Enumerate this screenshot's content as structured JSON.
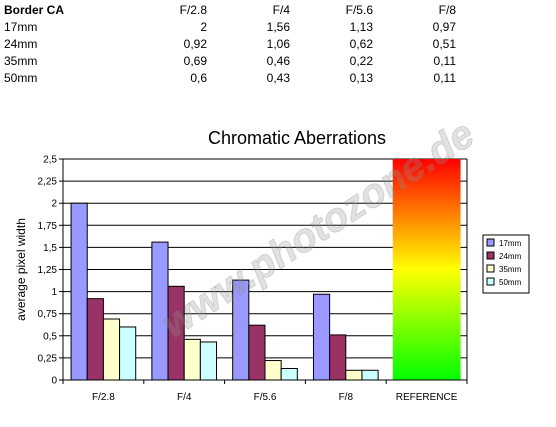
{
  "table": {
    "title": "Border CA",
    "columns": [
      "F/2.8",
      "F/4",
      "F/5.6",
      "F/8"
    ],
    "rows": [
      {
        "label": "17mm",
        "values": [
          "2",
          "1,56",
          "1,13",
          "0,97"
        ]
      },
      {
        "label": "24mm",
        "values": [
          "0,92",
          "1,06",
          "0,62",
          "0,51"
        ]
      },
      {
        "label": "35mm",
        "values": [
          "0,69",
          "0,46",
          "0,22",
          "0,11"
        ]
      },
      {
        "label": "50mm",
        "values": [
          "0,6",
          "0,43",
          "0,13",
          "0,11"
        ]
      }
    ]
  },
  "chart_data": {
    "type": "bar",
    "title": "Chromatic Aberrations",
    "ylabel": "average pixel width",
    "xlabel": "",
    "ylim": [
      0,
      2.5
    ],
    "ytick_step": 0.25,
    "ytick_labels": [
      "0",
      "0,25",
      "0,5",
      "0,75",
      "1",
      "1,25",
      "1,5",
      "1,75",
      "2",
      "2,25",
      "2,5"
    ],
    "categories": [
      "F/2.8",
      "F/4",
      "F/5.6",
      "F/8",
      "REFERENCE"
    ],
    "series": [
      {
        "name": "17mm",
        "color": "#9999ff",
        "values": [
          2,
          1.56,
          1.13,
          0.97,
          null
        ]
      },
      {
        "name": "24mm",
        "color": "#993366",
        "values": [
          0.92,
          1.06,
          0.62,
          0.51,
          null
        ]
      },
      {
        "name": "35mm",
        "color": "#ffffcc",
        "values": [
          0.69,
          0.46,
          0.22,
          0.11,
          null
        ]
      },
      {
        "name": "50mm",
        "color": "#ccffff",
        "values": [
          0.6,
          0.43,
          0.13,
          0.11,
          null
        ]
      }
    ],
    "reference": {
      "category": "REFERENCE",
      "value": 2.5,
      "gradient": [
        "#ff0000",
        "#ffff00",
        "#00ff00"
      ]
    },
    "grid": true,
    "legend": "right",
    "watermark": "www.photozone.de"
  }
}
